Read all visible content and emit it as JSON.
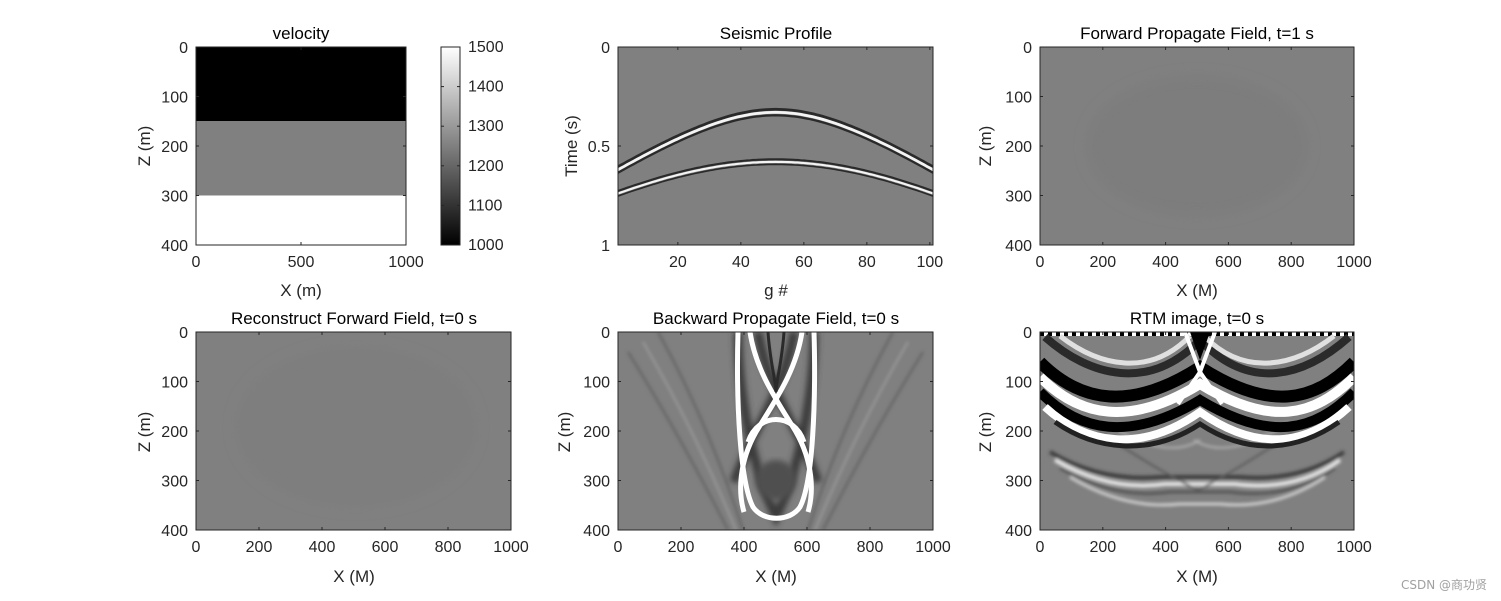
{
  "chart_data": [
    {
      "type": "heatmap",
      "id": "velocity",
      "title": "velocity",
      "xlabel": "X (m)",
      "ylabel": "Z (m)",
      "xlim": [
        0,
        1000
      ],
      "ylim": [
        0,
        400
      ],
      "xticks": [
        0,
        500,
        1000
      ],
      "yticks": [
        0,
        100,
        200,
        300,
        400
      ],
      "colormap": "gray",
      "layers": [
        {
          "z_top": 0,
          "z_bottom": 150,
          "value": 1000
        },
        {
          "z_top": 150,
          "z_bottom": 300,
          "value": 1250
        },
        {
          "z_top": 300,
          "z_bottom": 400,
          "value": 1500
        }
      ],
      "colorbar": {
        "min": 1000,
        "max": 1500,
        "ticks": [
          1000,
          1100,
          1200,
          1300,
          1400,
          1500
        ]
      }
    },
    {
      "type": "heatmap",
      "id": "seismic",
      "title": "Seismic Profile",
      "xlabel": "g #",
      "ylabel": "Time (s)",
      "xlim": [
        1,
        101
      ],
      "ylim": [
        0,
        1
      ],
      "xticks": [
        20,
        40,
        60,
        80,
        100
      ],
      "yticks": [
        0,
        0.5,
        1
      ],
      "colormap": "gray",
      "events": [
        {
          "apex_trace": 51,
          "apex_time": 0.33,
          "edge_time": 0.62,
          "edge_trace": 1,
          "amplitude": 1.0
        },
        {
          "apex_trace": 51,
          "apex_time": 0.58,
          "edge_time": 0.74,
          "edge_trace": 1,
          "amplitude": 0.55
        }
      ]
    },
    {
      "type": "heatmap",
      "id": "forward",
      "title": "Forward Propagate Field, t=1 s",
      "xlabel": "X (M)",
      "ylabel": "Z (m)",
      "xlim": [
        0,
        1000
      ],
      "ylim": [
        0,
        400
      ],
      "xticks": [
        0,
        200,
        400,
        600,
        800,
        1000
      ],
      "yticks": [
        0,
        100,
        200,
        300,
        400
      ],
      "colormap": "gray",
      "field": "near-uniform"
    },
    {
      "type": "heatmap",
      "id": "reconstruct",
      "title": "Reconstruct Forward Field, t=0 s",
      "xlabel": "X (M)",
      "ylabel": "Z (m)",
      "xlim": [
        0,
        1000
      ],
      "ylim": [
        0,
        400
      ],
      "xticks": [
        0,
        200,
        400,
        600,
        800,
        1000
      ],
      "yticks": [
        0,
        100,
        200,
        300,
        400
      ],
      "colormap": "gray",
      "field": "near-uniform"
    },
    {
      "type": "heatmap",
      "id": "backward",
      "title": "Backward Propagate Field, t=0 s",
      "xlabel": "X (M)",
      "ylabel": "Z (m)",
      "xlim": [
        0,
        1000
      ],
      "ylim": [
        0,
        400
      ],
      "xticks": [
        0,
        200,
        400,
        600,
        800,
        1000
      ],
      "yticks": [
        0,
        100,
        200,
        300,
        400
      ],
      "colormap": "gray",
      "field": "wavefront pattern"
    },
    {
      "type": "heatmap",
      "id": "rtm",
      "title": "RTM image, t=0 s",
      "xlabel": "X (M)",
      "ylabel": "Z (m)",
      "xlim": [
        0,
        1000
      ],
      "ylim": [
        0,
        400
      ],
      "xticks": [
        0,
        200,
        400,
        600,
        800,
        1000
      ],
      "yticks": [
        0,
        100,
        200,
        300,
        400
      ],
      "colormap": "gray",
      "field": "migration image",
      "reflectors_z": [
        110,
        285
      ]
    }
  ],
  "watermark": "CSDN @商功贤"
}
